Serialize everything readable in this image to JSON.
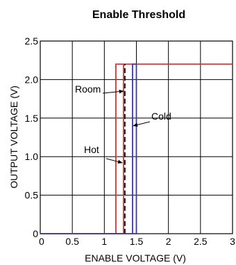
{
  "chart_data": {
    "type": "line",
    "title": "Enable Threshold",
    "xlabel": "ENABLE VOLTAGE (V)",
    "ylabel": "OUTPUT VOLTAGE (V)",
    "xlim": [
      0,
      3
    ],
    "ylim": [
      0,
      2.5
    ],
    "x_ticks": [
      "0",
      "0.5",
      "1",
      "1.5",
      "2",
      "2.5",
      "3"
    ],
    "y_ticks": [
      "0",
      "0.5",
      "1.0",
      "1.5",
      "2.0",
      "2.5"
    ],
    "grid": true,
    "output_high": 2.2,
    "series": [
      {
        "color": "#d93030",
        "rise_x": 1.18,
        "fall_x": 1.3,
        "high_extent": 3.0
      },
      {
        "color": "#000000",
        "dashed": true,
        "rise_x": 1.32,
        "fall_x": 1.32,
        "high_extent": 1.32
      },
      {
        "color": "#3a3aa0",
        "rise_x": 1.44,
        "fall_x": 1.5,
        "high_extent": 1.5
      }
    ],
    "annotations": [
      {
        "text": "Room",
        "arrow_to": [
          1.3,
          1.85
        ]
      },
      {
        "text": "Cold",
        "arrow_to": [
          1.45,
          1.4
        ]
      },
      {
        "text": "Hot",
        "arrow_to": [
          1.28,
          0.92
        ]
      }
    ]
  }
}
